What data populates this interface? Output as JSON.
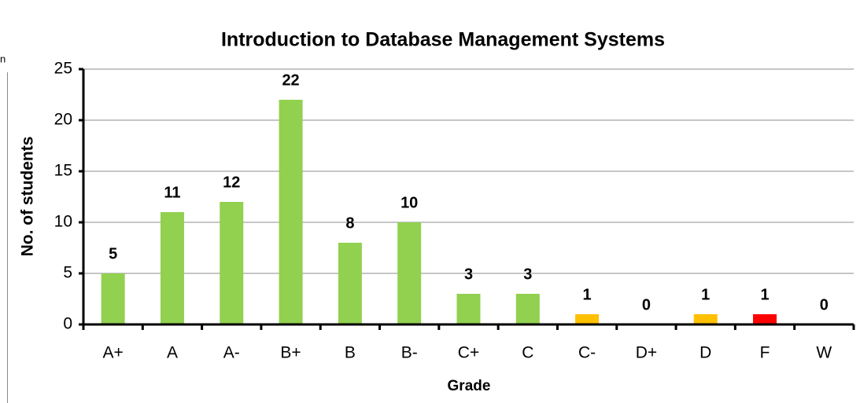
{
  "chart_data": {
    "type": "bar",
    "title": "Introduction to Database Management Systems",
    "annotation": "n",
    "x_label": "Grade",
    "y_label": "No. of students",
    "categories": [
      "A+",
      "A",
      "A-",
      "B+",
      "B",
      "B-",
      "C+",
      "C",
      "C-",
      "D+",
      "D",
      "F",
      "W"
    ],
    "values": [
      5,
      11,
      12,
      22,
      8,
      10,
      3,
      3,
      1,
      0,
      1,
      1,
      0
    ],
    "colors": [
      "#92d050",
      "#92d050",
      "#92d050",
      "#92d050",
      "#92d050",
      "#92d050",
      "#92d050",
      "#92d050",
      "#ffc000",
      "#92d050",
      "#ffc000",
      "#ff0000",
      "#92d050"
    ],
    "ylim": [
      0,
      25
    ],
    "yticks": [
      0,
      5,
      10,
      15,
      20,
      25
    ],
    "grid": true
  }
}
